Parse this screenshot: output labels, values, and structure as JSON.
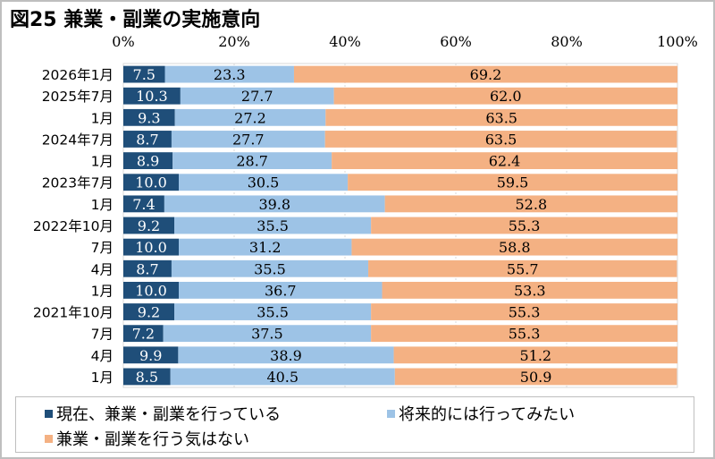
{
  "chart_data": {
    "type": "bar",
    "orientation": "horizontal",
    "stacked": "percent",
    "title": "図25 兼業・副業の実施意向",
    "xlabel": "",
    "ylabel": "",
    "xlim": [
      0,
      100
    ],
    "x_ticks": [
      "0%",
      "20%",
      "40%",
      "60%",
      "80%",
      "100%"
    ],
    "grid": true,
    "legend_position": "bottom",
    "categories": [
      "2026年1月",
      "2025年7月",
      "1月",
      "2024年7月",
      "1月",
      "2023年7月",
      "1月",
      "2022年10月",
      "7月",
      "4月",
      "1月",
      "2021年10月",
      "7月",
      "4月",
      "1月"
    ],
    "series": [
      {
        "name": "現在、兼業・副業を行っている",
        "color": "#1f4e79",
        "label_color": "#ffffff",
        "values": [
          7.5,
          10.3,
          9.3,
          8.7,
          8.9,
          10.0,
          7.4,
          9.2,
          10.0,
          8.7,
          10.0,
          9.2,
          7.2,
          9.9,
          8.5
        ],
        "labels": [
          "7.5",
          "10.3",
          "9.3",
          "8.7",
          "8.9",
          "10.0",
          "7.4",
          "9.2",
          "10.0",
          "8.7",
          "10.0",
          "9.2",
          "7.2",
          "9.9",
          "8.5"
        ]
      },
      {
        "name": "将来的には行ってみたい",
        "color": "#9dc3e6",
        "label_color": "#000000",
        "values": [
          23.3,
          27.7,
          27.2,
          27.7,
          28.7,
          30.5,
          39.8,
          35.5,
          31.2,
          35.5,
          36.7,
          35.5,
          37.5,
          38.9,
          40.5
        ],
        "labels": [
          "23.3",
          "27.7",
          "27.2",
          "27.7",
          "28.7",
          "30.5",
          "39.8",
          "35.5",
          "31.2",
          "35.5",
          "36.7",
          "35.5",
          "37.5",
          "38.9",
          "40.5"
        ]
      },
      {
        "name": "兼業・副業を行う気はない",
        "color": "#f4b183",
        "label_color": "#000000",
        "values": [
          69.2,
          62.0,
          63.5,
          63.5,
          62.4,
          59.5,
          52.8,
          55.3,
          58.8,
          55.7,
          53.3,
          55.3,
          55.3,
          51.2,
          50.9
        ],
        "labels": [
          "69.2",
          "62.0",
          "63.5",
          "63.5",
          "62.4",
          "59.5",
          "52.8",
          "55.3",
          "58.8",
          "55.7",
          "53.3",
          "55.3",
          "55.3",
          "51.2",
          "50.9"
        ]
      }
    ]
  }
}
